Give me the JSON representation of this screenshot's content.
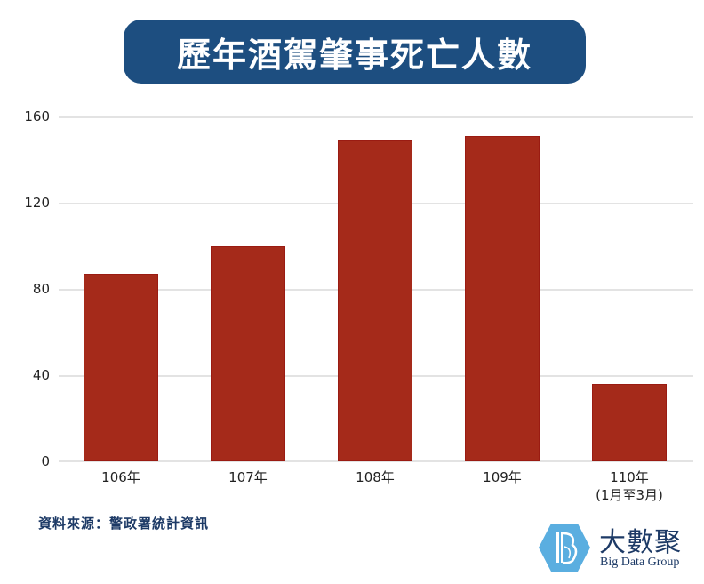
{
  "header": {
    "title": "歷年酒駕肇事死亡人數"
  },
  "chart_data": {
    "type": "bar",
    "title": "歷年酒駕肇事死亡人數",
    "categories": [
      "106年",
      "107年",
      "108年",
      "109年",
      "110年\n(1月至3月)"
    ],
    "values": [
      87,
      100,
      149,
      151,
      36
    ],
    "xlabel": "",
    "ylabel": "",
    "ylim": [
      0,
      160
    ],
    "yticks": [
      0,
      40,
      80,
      120,
      160
    ],
    "grid": true,
    "legend": null,
    "bar_color": "#a52a1a"
  },
  "yaxis": {
    "ticks": [
      "160",
      "120",
      "80",
      "40",
      "0"
    ]
  },
  "xaxis": {
    "labels": [
      {
        "line1": "106年",
        "line2": ""
      },
      {
        "line1": "107年",
        "line2": ""
      },
      {
        "line1": "108年",
        "line2": ""
      },
      {
        "line1": "109年",
        "line2": ""
      },
      {
        "line1": "110年",
        "line2": "(1月至3月)"
      }
    ]
  },
  "footer": {
    "source": "資料來源：警政署統計資訊",
    "logo_cn": "大數聚",
    "logo_en": "Big Data Group"
  },
  "colors": {
    "title_bg": "#1d4e80",
    "bar": "#a52a1a",
    "logo_blue": "#5aaee0"
  }
}
